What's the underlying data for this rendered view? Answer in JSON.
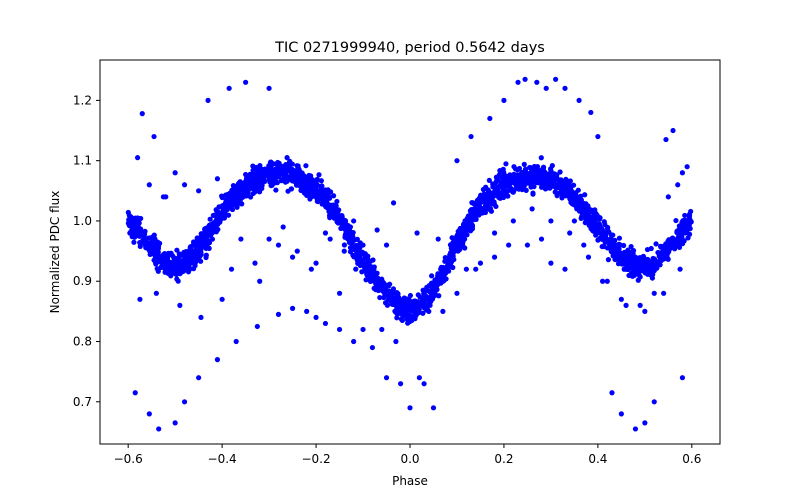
{
  "chart_data": {
    "type": "scatter",
    "title": "TIC 0271999940, period 0.5642 days",
    "xlabel": "Phase",
    "ylabel": "Normalized PDC flux",
    "xlim": [
      -0.66,
      0.66
    ],
    "ylim": [
      0.63,
      1.267
    ],
    "xticks": [
      -0.6,
      -0.4,
      -0.2,
      0.0,
      0.2,
      0.4,
      0.6
    ],
    "xtick_labels": [
      "−0.6",
      "−0.4",
      "−0.2",
      "0.0",
      "0.2",
      "0.4",
      "0.6"
    ],
    "yticks": [
      0.7,
      0.8,
      0.9,
      1.0,
      1.1,
      1.2
    ],
    "ytick_labels": [
      "0.7",
      "0.8",
      "0.9",
      "1.0",
      "1.1",
      "1.2"
    ],
    "grid": false,
    "marker_color": "#0000ff",
    "series": [
      {
        "name": "",
        "color": "#0000ff",
        "main_band": {
          "x": [
            -0.6,
            -0.58,
            -0.56,
            -0.54,
            -0.52,
            -0.5,
            -0.48,
            -0.46,
            -0.44,
            -0.42,
            -0.4,
            -0.38,
            -0.36,
            -0.34,
            -0.32,
            -0.3,
            -0.28,
            -0.26,
            -0.24,
            -0.22,
            -0.2,
            -0.18,
            -0.16,
            -0.14,
            -0.12,
            -0.1,
            -0.08,
            -0.06,
            -0.04,
            -0.02,
            0.0,
            0.02,
            0.04,
            0.06,
            0.08,
            0.1,
            0.12,
            0.14,
            0.16,
            0.18,
            0.2,
            0.22,
            0.24,
            0.26,
            0.28,
            0.3,
            0.32,
            0.34,
            0.36,
            0.38,
            0.4,
            0.42,
            0.44,
            0.46,
            0.48,
            0.5,
            0.52,
            0.54,
            0.56,
            0.58,
            0.6
          ],
          "y": [
            1.0,
            0.985,
            0.965,
            0.945,
            0.93,
            0.925,
            0.93,
            0.945,
            0.965,
            0.99,
            1.015,
            1.035,
            1.05,
            1.063,
            1.072,
            1.078,
            1.08,
            1.078,
            1.072,
            1.062,
            1.05,
            1.035,
            1.015,
            0.99,
            0.96,
            0.935,
            0.91,
            0.89,
            0.872,
            0.86,
            0.852,
            0.86,
            0.875,
            0.9,
            0.93,
            0.96,
            0.99,
            1.015,
            1.035,
            1.05,
            1.06,
            1.068,
            1.073,
            1.075,
            1.073,
            1.068,
            1.06,
            1.048,
            1.03,
            1.01,
            0.99,
            0.97,
            0.95,
            0.935,
            0.925,
            0.925,
            0.93,
            0.945,
            0.965,
            0.985,
            1.0
          ]
        },
        "outliers": {
          "x": [
            -0.585,
            -0.57,
            -0.555,
            -0.545,
            -0.535,
            -0.52,
            -0.5,
            -0.48,
            -0.45,
            -0.43,
            -0.41,
            -0.385,
            -0.37,
            -0.35,
            -0.325,
            -0.3,
            -0.28,
            -0.25,
            -0.22,
            -0.2,
            -0.18,
            -0.15,
            -0.12,
            -0.08,
            -0.05,
            -0.03,
            -0.02,
            0.0,
            0.02,
            0.03,
            0.05,
            0.1,
            0.13,
            0.17,
            0.2,
            0.23,
            0.245,
            0.27,
            0.29,
            0.31,
            0.33,
            0.36,
            0.385,
            0.4,
            0.43,
            0.45,
            0.48,
            0.5,
            0.52,
            0.545,
            0.56,
            0.58,
            0.59,
            -0.58,
            -0.555,
            -0.525,
            -0.5,
            -0.48,
            -0.45,
            -0.41,
            -0.38,
            -0.33,
            -0.3,
            -0.27,
            -0.24,
            -0.2,
            -0.17,
            -0.14,
            -0.12,
            -0.1,
            -0.07,
            -0.05,
            -0.035,
            0.015,
            0.06,
            0.085,
            0.12,
            0.15,
            0.18,
            0.21,
            0.25,
            0.28,
            0.3,
            0.33,
            0.35,
            0.38,
            0.42,
            0.46,
            0.49,
            0.52,
            0.55,
            0.57,
            0.58,
            -0.575,
            -0.54,
            -0.49,
            -0.445,
            -0.4,
            -0.36,
            -0.32,
            -0.28,
            -0.25,
            -0.21,
            -0.18,
            -0.15,
            -0.1,
            -0.06,
            -0.02,
            0.01,
            0.04,
            0.07,
            0.1,
            0.14,
            0.18,
            0.22,
            0.26,
            0.3,
            0.34,
            0.37,
            0.41,
            0.45,
            0.5,
            0.54,
            0.575
          ],
          "y": [
            0.715,
            1.178,
            0.68,
            1.14,
            0.655,
            1.04,
            0.665,
            0.7,
            0.74,
            1.2,
            0.77,
            1.22,
            0.8,
            1.23,
            0.825,
            1.22,
            0.845,
            0.855,
            0.85,
            0.84,
            0.83,
            0.82,
            0.8,
            0.79,
            0.74,
            0.8,
            0.73,
            0.69,
            0.74,
            0.73,
            0.69,
            1.1,
            1.14,
            1.17,
            1.2,
            1.23,
            1.235,
            1.23,
            1.22,
            1.235,
            1.22,
            1.2,
            1.18,
            1.14,
            0.715,
            0.68,
            0.655,
            0.665,
            0.7,
            1.135,
            1.15,
            0.74,
            1.09,
            1.105,
            1.06,
            1.04,
            1.08,
            1.06,
            1.05,
            1.07,
            0.92,
            0.93,
            0.97,
            0.99,
            0.95,
            0.93,
            0.97,
            0.95,
            1.0,
            0.96,
            0.985,
            0.96,
            1.03,
            0.98,
            0.97,
            0.94,
            0.92,
            0.93,
            0.94,
            0.96,
            0.96,
            0.97,
            0.93,
            0.92,
            1.0,
            0.94,
            0.9,
            0.86,
            0.86,
            0.88,
            1.04,
            1.06,
            1.08,
            0.87,
            0.88,
            0.86,
            0.84,
            0.87,
            0.97,
            0.9,
            0.96,
            0.94,
            0.92,
            0.98,
            0.88,
            0.82,
            0.82,
            0.86,
            0.84,
            0.85,
            0.85,
            0.88,
            0.92,
            0.98,
            1.0,
            1.02,
            1.0,
            0.98,
            0.96,
            0.9,
            0.87,
            0.85,
            0.88,
            0.92
          ]
        }
      }
    ]
  }
}
